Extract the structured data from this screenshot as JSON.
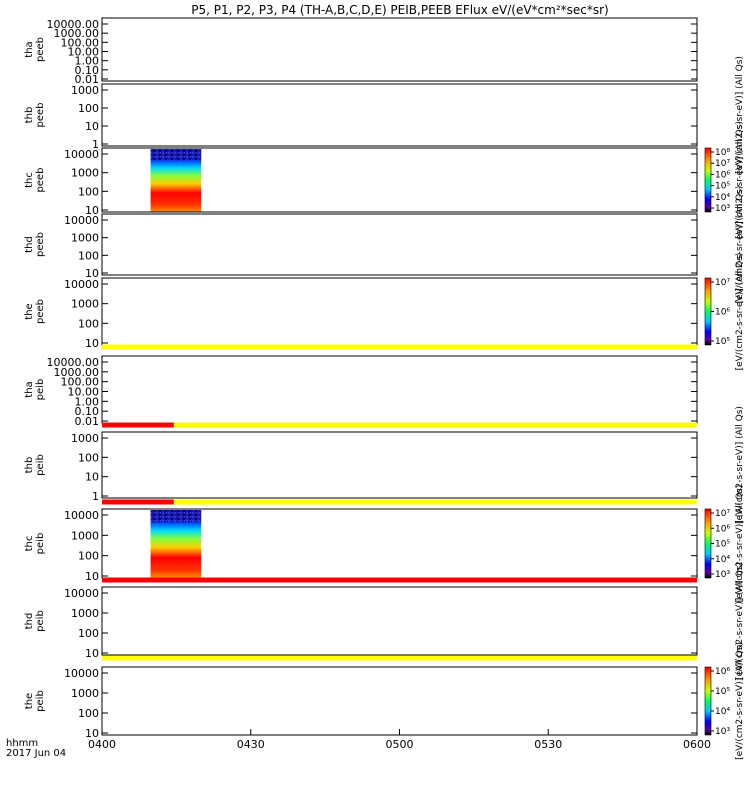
{
  "chart_data": {
    "type": "heatmap",
    "title": "P5, P1, P2, P3, P4 (TH-A,B,C,D,E) PEIB,PEEB EFlux eV/(eV*cm²*sec*sr)",
    "x_label_line1": "hhmm",
    "x_label_line2": "2017 Jun 04",
    "x_ticks": [
      "0400",
      "0430",
      "0500",
      "0530",
      "0600"
    ],
    "x_range_minutes": [
      0,
      120
    ],
    "panels": [
      {
        "id": "tha-peeb",
        "label1": "tha",
        "label2": "peeb",
        "yticks": [
          "10000.00",
          "1000.00",
          "100.00",
          "10.00",
          "1.00",
          "0.10",
          "0.01"
        ],
        "spectrogram": null
      },
      {
        "id": "thb-peeb",
        "label1": "thb",
        "label2": "peeb",
        "yticks": [
          "1000",
          "100",
          "10",
          "1"
        ],
        "spectrogram": null
      },
      {
        "id": "thc-peeb",
        "label1": "thc",
        "label2": "peeb",
        "yticks": [
          "10000",
          "1000",
          "100",
          "10"
        ],
        "spectrogram": {
          "start_min": 9.8,
          "end_min": 20.0
        }
      },
      {
        "id": "thd-peeb",
        "label1": "thd",
        "label2": "peeb",
        "yticks": [
          "10000",
          "1000",
          "100",
          "10"
        ],
        "spectrogram": null
      },
      {
        "id": "the-peeb",
        "label1": "the",
        "label2": "peeb",
        "yticks": [
          "10000",
          "1000",
          "100",
          "10"
        ],
        "spectrogram": null
      },
      {
        "id": "tha-peib",
        "label1": "tha",
        "label2": "peib",
        "yticks": [
          "10000.00",
          "1000.00",
          "100.00",
          "10.00",
          "1.00",
          "0.10",
          "0.01"
        ],
        "spectrogram": null
      },
      {
        "id": "thb-peib",
        "label1": "thb",
        "label2": "peib",
        "yticks": [
          "1000",
          "100",
          "10",
          "1"
        ],
        "spectrogram": null
      },
      {
        "id": "thc-peib",
        "label1": "thc",
        "label2": "peib",
        "yticks": [
          "10000",
          "1000",
          "100",
          "10"
        ],
        "spectrogram": {
          "start_min": 9.8,
          "end_min": 20.0
        }
      },
      {
        "id": "thd-peib",
        "label1": "thd",
        "label2": "peib",
        "yticks": [
          "10000",
          "1000",
          "100",
          "10"
        ],
        "spectrogram": null
      },
      {
        "id": "the-peib",
        "label1": "the",
        "label2": "peib",
        "yticks": [
          "10000",
          "1000",
          "100",
          "10"
        ],
        "spectrogram": null
      }
    ],
    "status_bars": [
      {
        "after_panel": 4,
        "segments": [
          {
            "start_min": 0,
            "end_min": 120,
            "color": "#ffff00"
          }
        ]
      },
      {
        "after_panel": 5,
        "segments": [
          {
            "start_min": 0,
            "end_min": 14.5,
            "color": "#ff0000"
          },
          {
            "start_min": 14.5,
            "end_min": 120,
            "color": "#ffff00"
          }
        ]
      },
      {
        "after_panel": 6,
        "segments": [
          {
            "start_min": 0,
            "end_min": 14.5,
            "color": "#ff0000"
          },
          {
            "start_min": 14.5,
            "end_min": 120,
            "color": "#ffff00"
          }
        ]
      },
      {
        "after_panel": 7,
        "segments": [
          {
            "start_min": 0,
            "end_min": 120,
            "color": "#ff0000"
          }
        ]
      },
      {
        "after_panel": 8,
        "segments": [
          {
            "start_min": 0,
            "end_min": 120,
            "color": "#ffff00"
          }
        ]
      }
    ],
    "colorbars": [
      {
        "id": "cb-thb-peeb",
        "panel": 1,
        "label": "[eV/(cm2-s-sr-eV)] (All Qs)",
        "ticks": [],
        "has_scale": false
      },
      {
        "id": "cb-thc-peeb",
        "panel": 2,
        "label": "[eV/(cm2-s-sr-eV)] (All Qs)",
        "ticks": [
          "10⁸",
          "10⁷",
          "10⁶",
          "10⁵",
          "10⁴",
          "10³"
        ],
        "has_scale": true
      },
      {
        "id": "cb-thd-peeb",
        "panel": 3,
        "label": "[eV/(cm2-s-sr-eV)] (All Qs)",
        "ticks": [],
        "has_scale": false
      },
      {
        "id": "cb-the-peeb",
        "panel": 4,
        "label": "[eV/(cm2-s-sr-eV)] (All Qs)",
        "ticks": [
          "10⁷",
          "10⁶",
          "10⁵"
        ],
        "has_scale": true
      },
      {
        "id": "cb-thb-peib",
        "panel": 6,
        "label": "[eV/(cm2-s-sr-eV)] (All Qs)",
        "ticks": [],
        "has_scale": false
      },
      {
        "id": "cb-thc-peib",
        "panel": 7,
        "label": "[eV/(cm2-s-sr-eV)] (All Qs)",
        "ticks": [
          "10⁷",
          "10⁶",
          "10⁵",
          "10⁴",
          "10³"
        ],
        "has_scale": true
      },
      {
        "id": "cb-thd-peib",
        "panel": 8,
        "label": "[eV/(cm2-s-sr-eV)] (All Qs)",
        "ticks": [],
        "has_scale": false
      },
      {
        "id": "cb-the-peib",
        "panel": 9,
        "label": "[eV/(cm2-s-sr-eV)] (All Qs)",
        "ticks": [
          "10⁶",
          "10⁵",
          "10⁴",
          "10³"
        ],
        "has_scale": true
      }
    ]
  }
}
